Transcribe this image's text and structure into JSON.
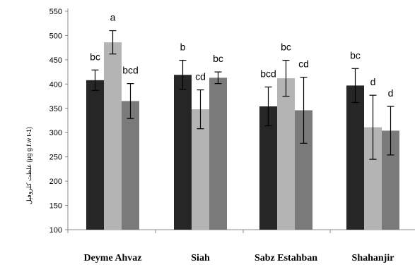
{
  "chart_data": {
    "type": "bar",
    "ylabel": "غلظت کلروفیل (µg g.f.w t-1)",
    "ylim": [
      100,
      550
    ],
    "yticks": [
      100,
      150,
      200,
      250,
      300,
      350,
      400,
      450,
      500,
      550
    ],
    "grid": false,
    "categories": [
      "Deyme Ahvaz",
      "Siah",
      "Sabz Estahban",
      "Shahanjir"
    ],
    "series": [
      {
        "color": "#262626",
        "values": [
          408,
          419,
          354,
          397
        ],
        "errors": [
          21,
          30,
          40,
          35
        ],
        "labels": [
          "bc",
          "b",
          "bcd",
          "bc"
        ]
      },
      {
        "color": "#b4b4b4",
        "values": [
          486,
          348,
          412,
          311
        ],
        "errors": [
          24,
          40,
          37,
          66
        ],
        "labels": [
          "a",
          "cd",
          "bc",
          "d"
        ]
      },
      {
        "color": "#7a7a7a",
        "values": [
          365,
          413,
          346,
          304
        ],
        "errors": [
          36,
          12,
          68,
          50
        ],
        "labels": [
          "bcd",
          "bc",
          "cd",
          "d"
        ]
      }
    ]
  }
}
